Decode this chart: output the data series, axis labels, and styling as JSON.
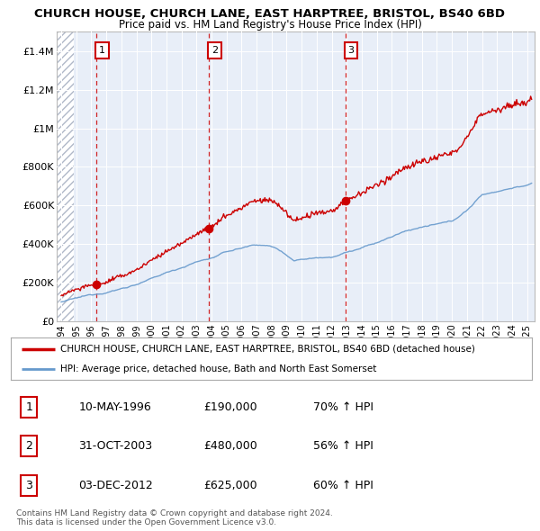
{
  "title": "CHURCH HOUSE, CHURCH LANE, EAST HARPTREE, BRISTOL, BS40 6BD",
  "subtitle": "Price paid vs. HM Land Registry's House Price Index (HPI)",
  "ylim": [
    0,
    1500000
  ],
  "yticks": [
    0,
    200000,
    400000,
    600000,
    800000,
    1000000,
    1200000,
    1400000
  ],
  "ytick_labels": [
    "£0",
    "£200K",
    "£400K",
    "£600K",
    "£800K",
    "£1M",
    "£1.2M",
    "£1.4M"
  ],
  "sale_year_floats": [
    1996.36,
    2003.83,
    2012.92
  ],
  "sale_prices": [
    190000,
    480000,
    625000
  ],
  "sale_labels": [
    "1",
    "2",
    "3"
  ],
  "sale_color": "#cc0000",
  "hpi_color": "#6699cc",
  "bg_color": "#e8eef8",
  "grid_color": "white",
  "hatch_color": "#b0b8c8",
  "legend_label_sale": "CHURCH HOUSE, CHURCH LANE, EAST HARPTREE, BRISTOL, BS40 6BD (detached house)",
  "legend_label_hpi": "HPI: Average price, detached house, Bath and North East Somerset",
  "table_entries": [
    {
      "num": "1",
      "date": "10-MAY-1996",
      "price": "£190,000",
      "change": "70% ↑ HPI"
    },
    {
      "num": "2",
      "date": "31-OCT-2003",
      "price": "£480,000",
      "change": "56% ↑ HPI"
    },
    {
      "num": "3",
      "date": "03-DEC-2012",
      "price": "£625,000",
      "change": "60% ↑ HPI"
    }
  ],
  "footer": "Contains HM Land Registry data © Crown copyright and database right 2024.\nThis data is licensed under the Open Government Licence v3.0.",
  "xlim_start": 1993.7,
  "xlim_end": 2025.5,
  "hatch_end": 1994.85
}
